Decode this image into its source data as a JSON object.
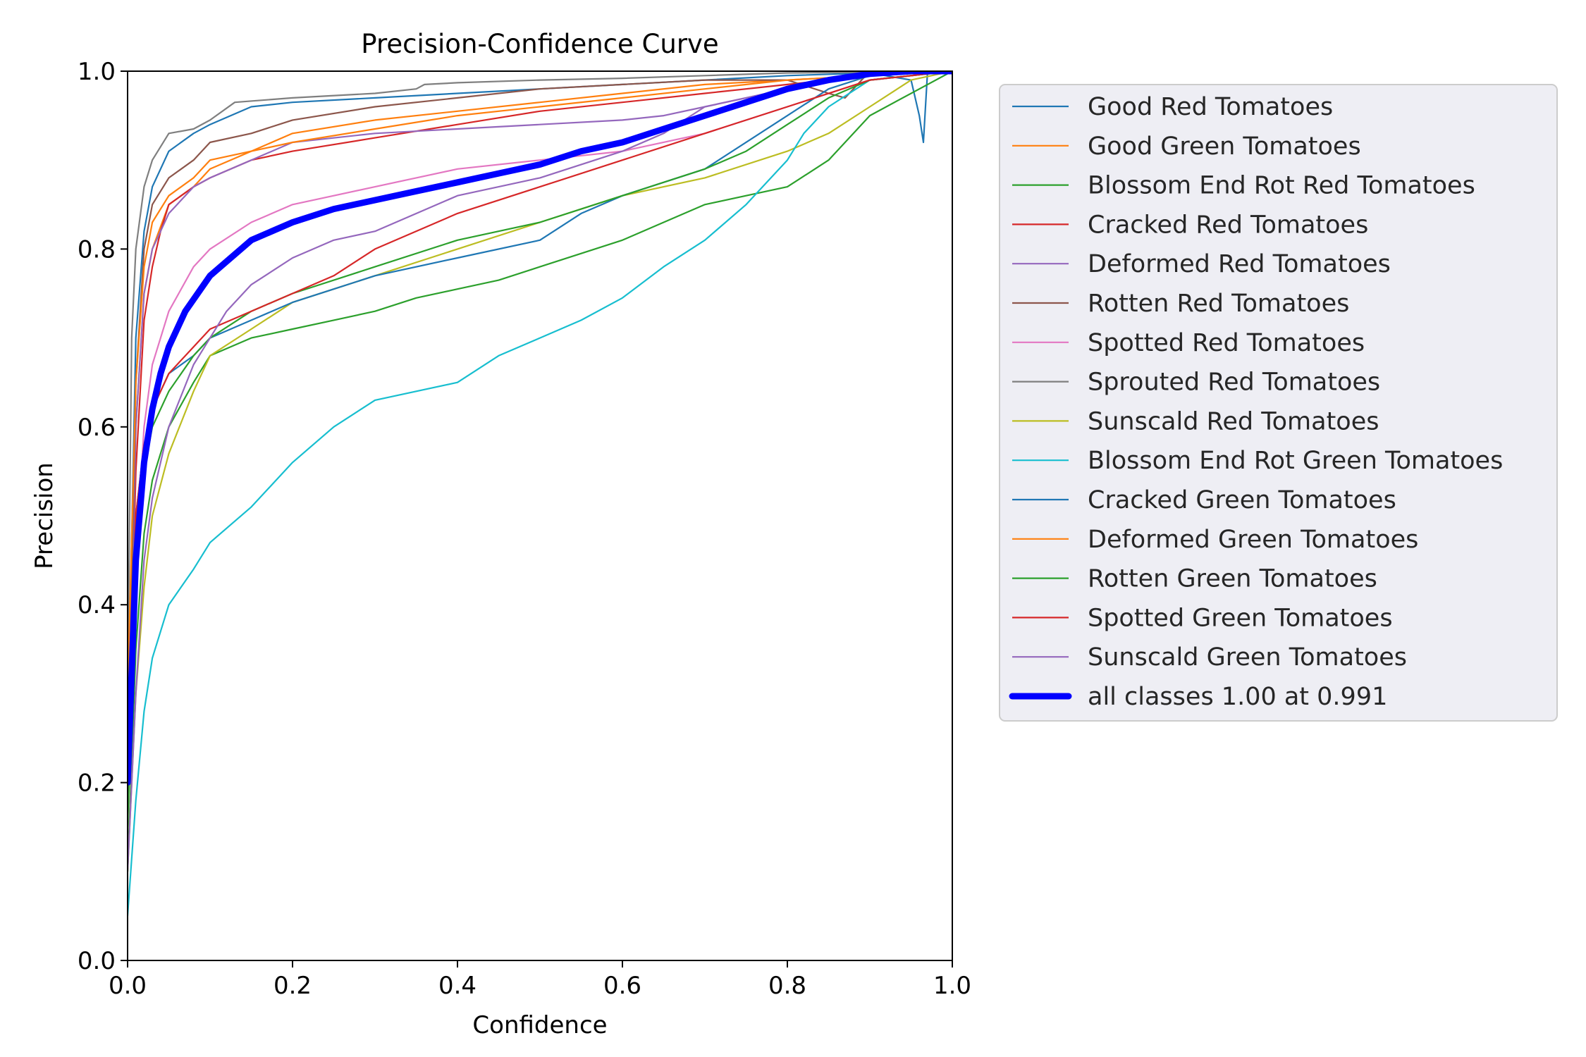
{
  "chart_data": {
    "type": "line",
    "title": "Precision-Confidence Curve",
    "xlabel": "Confidence",
    "ylabel": "Precision",
    "xlim": [
      0,
      1
    ],
    "ylim": [
      0,
      1
    ],
    "x_ticks": [
      "0.0",
      "0.2",
      "0.4",
      "0.6",
      "0.8",
      "1.0"
    ],
    "y_ticks": [
      "0.0",
      "0.2",
      "0.4",
      "0.6",
      "0.8",
      "1.0"
    ],
    "grid": false,
    "legend_position": "outside-right",
    "series": [
      {
        "name": "Good Red Tomatoes",
        "color": "#1f77b4",
        "x": [
          0,
          0.01,
          0.02,
          0.03,
          0.05,
          0.08,
          0.1,
          0.15,
          0.2,
          0.3,
          0.4,
          0.5,
          0.6,
          0.7,
          0.8,
          0.9,
          0.95,
          0.96,
          0.965,
          0.97,
          1.0
        ],
        "y": [
          0.25,
          0.7,
          0.82,
          0.87,
          0.91,
          0.93,
          0.94,
          0.96,
          0.965,
          0.97,
          0.975,
          0.98,
          0.985,
          0.99,
          0.995,
          0.998,
          0.99,
          0.95,
          0.92,
          1.0,
          1.0
        ]
      },
      {
        "name": "Good Green Tomatoes",
        "color": "#ff7f0e",
        "x": [
          0,
          0.01,
          0.02,
          0.03,
          0.05,
          0.08,
          0.1,
          0.15,
          0.2,
          0.3,
          0.4,
          0.5,
          0.6,
          0.7,
          0.8,
          0.9,
          1.0
        ],
        "y": [
          0.2,
          0.6,
          0.75,
          0.8,
          0.85,
          0.87,
          0.89,
          0.91,
          0.93,
          0.945,
          0.955,
          0.965,
          0.975,
          0.985,
          0.99,
          0.995,
          1.0
        ]
      },
      {
        "name": "Blossom End Rot Red Tomatoes",
        "color": "#2ca02c",
        "x": [
          0,
          0.01,
          0.02,
          0.03,
          0.05,
          0.08,
          0.1,
          0.15,
          0.2,
          0.25,
          0.3,
          0.35,
          0.4,
          0.45,
          0.5,
          0.55,
          0.6,
          0.65,
          0.7,
          0.75,
          0.8,
          0.85,
          0.9,
          1.0
        ],
        "y": [
          0.1,
          0.35,
          0.48,
          0.54,
          0.6,
          0.65,
          0.68,
          0.7,
          0.71,
          0.72,
          0.73,
          0.745,
          0.755,
          0.765,
          0.78,
          0.795,
          0.81,
          0.83,
          0.85,
          0.86,
          0.87,
          0.9,
          0.95,
          1.0
        ]
      },
      {
        "name": "Cracked Red Tomatoes",
        "color": "#d62728",
        "x": [
          0,
          0.01,
          0.02,
          0.03,
          0.04,
          0.05,
          0.08,
          0.1,
          0.15,
          0.2,
          0.3,
          0.4,
          0.5,
          0.6,
          0.7,
          0.8,
          0.9,
          1.0
        ],
        "y": [
          0.2,
          0.55,
          0.72,
          0.78,
          0.82,
          0.85,
          0.87,
          0.88,
          0.9,
          0.91,
          0.925,
          0.94,
          0.955,
          0.965,
          0.975,
          0.985,
          0.995,
          1.0
        ]
      },
      {
        "name": "Deformed Red Tomatoes",
        "color": "#9467bd",
        "x": [
          0,
          0.01,
          0.02,
          0.03,
          0.05,
          0.08,
          0.1,
          0.15,
          0.2,
          0.3,
          0.4,
          0.5,
          0.6,
          0.65,
          0.7,
          0.75,
          0.8,
          0.85,
          0.9,
          1.0
        ],
        "y": [
          0.2,
          0.6,
          0.75,
          0.8,
          0.84,
          0.87,
          0.88,
          0.9,
          0.92,
          0.93,
          0.935,
          0.94,
          0.945,
          0.95,
          0.96,
          0.97,
          0.98,
          0.99,
          0.995,
          1.0
        ]
      },
      {
        "name": "Rotten Red Tomatoes",
        "color": "#8c564b",
        "x": [
          0,
          0.01,
          0.02,
          0.03,
          0.05,
          0.08,
          0.1,
          0.15,
          0.2,
          0.3,
          0.4,
          0.5,
          0.6,
          0.7,
          0.8,
          0.85,
          0.87,
          0.9,
          1.0
        ],
        "y": [
          0.2,
          0.65,
          0.8,
          0.85,
          0.88,
          0.9,
          0.92,
          0.93,
          0.945,
          0.96,
          0.97,
          0.98,
          0.985,
          0.99,
          0.99,
          0.975,
          0.97,
          1.0,
          1.0
        ]
      },
      {
        "name": "Spotted Red Tomatoes",
        "color": "#e377c2",
        "x": [
          0,
          0.01,
          0.02,
          0.03,
          0.05,
          0.08,
          0.1,
          0.15,
          0.2,
          0.25,
          0.3,
          0.35,
          0.4,
          0.5,
          0.6,
          0.7,
          0.8,
          0.9,
          1.0
        ],
        "y": [
          0.15,
          0.45,
          0.6,
          0.67,
          0.73,
          0.78,
          0.8,
          0.83,
          0.85,
          0.86,
          0.87,
          0.88,
          0.89,
          0.9,
          0.91,
          0.93,
          0.96,
          0.99,
          1.0
        ]
      },
      {
        "name": "Sprouted Red Tomatoes",
        "color": "#7f7f7f",
        "x": [
          0,
          0.005,
          0.01,
          0.02,
          0.03,
          0.05,
          0.08,
          0.1,
          0.13,
          0.2,
          0.3,
          0.35,
          0.36,
          0.4,
          0.5,
          0.6,
          0.7,
          0.8,
          0.9,
          1.0
        ],
        "y": [
          0.3,
          0.7,
          0.8,
          0.87,
          0.9,
          0.93,
          0.935,
          0.945,
          0.965,
          0.97,
          0.975,
          0.98,
          0.985,
          0.987,
          0.99,
          0.992,
          0.995,
          0.998,
          0.999,
          1.0
        ]
      },
      {
        "name": "Sunscald Red Tomatoes",
        "color": "#bcbd22",
        "x": [
          0,
          0.01,
          0.02,
          0.03,
          0.05,
          0.08,
          0.1,
          0.15,
          0.2,
          0.3,
          0.4,
          0.5,
          0.6,
          0.7,
          0.8,
          0.85,
          0.9,
          0.95,
          1.0
        ],
        "y": [
          0.1,
          0.3,
          0.42,
          0.5,
          0.57,
          0.64,
          0.68,
          0.71,
          0.74,
          0.77,
          0.8,
          0.83,
          0.86,
          0.88,
          0.91,
          0.93,
          0.96,
          0.99,
          1.0
        ]
      },
      {
        "name": "Blossom End Rot Green Tomatoes",
        "color": "#17becf",
        "x": [
          0,
          0.01,
          0.02,
          0.03,
          0.05,
          0.08,
          0.1,
          0.15,
          0.2,
          0.25,
          0.3,
          0.35,
          0.4,
          0.45,
          0.5,
          0.55,
          0.6,
          0.65,
          0.7,
          0.75,
          0.8,
          0.82,
          0.85,
          0.9,
          1.0
        ],
        "y": [
          0.05,
          0.18,
          0.28,
          0.34,
          0.4,
          0.44,
          0.47,
          0.51,
          0.56,
          0.6,
          0.63,
          0.64,
          0.65,
          0.68,
          0.7,
          0.72,
          0.745,
          0.78,
          0.81,
          0.85,
          0.9,
          0.93,
          0.96,
          0.99,
          1.0
        ]
      },
      {
        "name": "Cracked Green Tomatoes",
        "color": "#1f77b4",
        "x": [
          0,
          0.01,
          0.02,
          0.03,
          0.05,
          0.08,
          0.1,
          0.15,
          0.2,
          0.25,
          0.3,
          0.4,
          0.5,
          0.55,
          0.6,
          0.7,
          0.8,
          0.85,
          0.9,
          1.0
        ],
        "y": [
          0.2,
          0.5,
          0.58,
          0.62,
          0.66,
          0.68,
          0.7,
          0.72,
          0.74,
          0.755,
          0.77,
          0.79,
          0.81,
          0.84,
          0.86,
          0.89,
          0.95,
          0.98,
          0.995,
          1.0
        ]
      },
      {
        "name": "Deformed Green Tomatoes",
        "color": "#ff7f0e",
        "x": [
          0,
          0.01,
          0.02,
          0.03,
          0.05,
          0.08,
          0.1,
          0.15,
          0.2,
          0.3,
          0.4,
          0.5,
          0.6,
          0.7,
          0.8,
          0.9,
          1.0
        ],
        "y": [
          0.3,
          0.65,
          0.78,
          0.83,
          0.86,
          0.88,
          0.9,
          0.91,
          0.92,
          0.935,
          0.95,
          0.96,
          0.97,
          0.98,
          0.99,
          0.995,
          1.0
        ]
      },
      {
        "name": "Rotten Green Tomatoes",
        "color": "#2ca02c",
        "x": [
          0,
          0.01,
          0.02,
          0.03,
          0.05,
          0.08,
          0.1,
          0.15,
          0.2,
          0.3,
          0.4,
          0.5,
          0.6,
          0.7,
          0.75,
          0.8,
          0.85,
          0.9,
          1.0
        ],
        "y": [
          0.15,
          0.45,
          0.55,
          0.6,
          0.64,
          0.68,
          0.7,
          0.73,
          0.75,
          0.78,
          0.81,
          0.83,
          0.86,
          0.89,
          0.91,
          0.94,
          0.97,
          0.99,
          1.0
        ]
      },
      {
        "name": "Spotted Green Tomatoes",
        "color": "#d62728",
        "x": [
          0,
          0.01,
          0.02,
          0.03,
          0.04,
          0.05,
          0.08,
          0.1,
          0.15,
          0.2,
          0.25,
          0.3,
          0.4,
          0.5,
          0.6,
          0.7,
          0.8,
          0.9,
          1.0
        ],
        "y": [
          0.2,
          0.5,
          0.58,
          0.62,
          0.64,
          0.66,
          0.69,
          0.71,
          0.73,
          0.75,
          0.77,
          0.8,
          0.84,
          0.87,
          0.9,
          0.93,
          0.96,
          0.99,
          1.0
        ]
      },
      {
        "name": "Sunscald Green Tomatoes",
        "color": "#9467bd",
        "x": [
          0,
          0.01,
          0.02,
          0.03,
          0.05,
          0.08,
          0.1,
          0.12,
          0.15,
          0.2,
          0.25,
          0.3,
          0.4,
          0.5,
          0.6,
          0.65,
          0.7,
          0.8,
          0.9,
          1.0
        ],
        "y": [
          0.1,
          0.3,
          0.45,
          0.52,
          0.6,
          0.67,
          0.7,
          0.73,
          0.76,
          0.79,
          0.81,
          0.82,
          0.86,
          0.88,
          0.91,
          0.93,
          0.96,
          0.98,
          0.995,
          1.0
        ]
      },
      {
        "name": "all classes 1.00 at 0.991",
        "color": "#0000ff",
        "bold": true,
        "x": [
          0,
          0.01,
          0.02,
          0.03,
          0.04,
          0.05,
          0.07,
          0.1,
          0.15,
          0.2,
          0.25,
          0.3,
          0.35,
          0.4,
          0.45,
          0.5,
          0.55,
          0.6,
          0.65,
          0.7,
          0.75,
          0.8,
          0.85,
          0.9,
          0.95,
          1.0
        ],
        "y": [
          0.2,
          0.45,
          0.56,
          0.62,
          0.66,
          0.69,
          0.73,
          0.77,
          0.81,
          0.83,
          0.845,
          0.855,
          0.865,
          0.875,
          0.885,
          0.895,
          0.91,
          0.92,
          0.935,
          0.95,
          0.965,
          0.98,
          0.99,
          0.997,
          1.0,
          1.0
        ]
      }
    ]
  }
}
